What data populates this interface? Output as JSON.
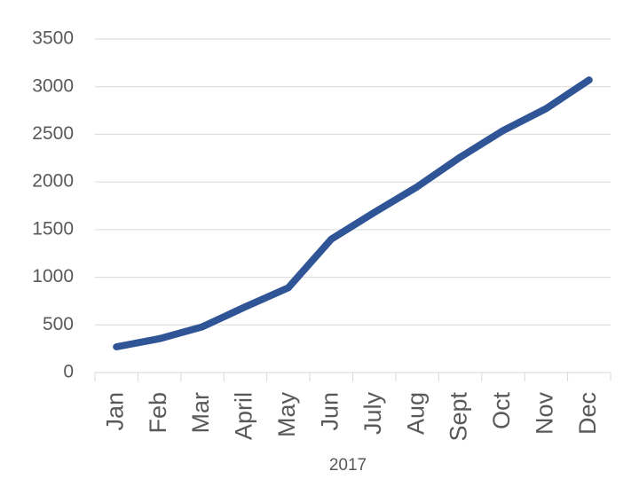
{
  "chart_data": {
    "type": "line",
    "x_label": "2017",
    "categories": [
      "Jan",
      "Feb",
      "Mar",
      "April",
      "May",
      "Jun",
      "July",
      "Aug",
      "Sept",
      "Oct",
      "Nov",
      "Dec"
    ],
    "series": [
      {
        "color": "#2f5597",
        "values": [
          270,
          355,
          480,
          690,
          890,
          1400,
          1680,
          1950,
          2260,
          2540,
          2770,
          3070
        ]
      }
    ],
    "ylim": [
      0,
      3500
    ],
    "yticks": [
      0,
      500,
      1000,
      1500,
      2000,
      2500,
      3000,
      3500
    ],
    "grid": true
  }
}
